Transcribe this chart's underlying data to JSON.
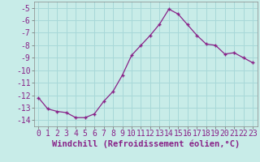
{
  "x": [
    0,
    1,
    2,
    3,
    4,
    5,
    6,
    7,
    8,
    9,
    10,
    11,
    12,
    13,
    14,
    15,
    16,
    17,
    18,
    19,
    20,
    21,
    22,
    23
  ],
  "y": [
    -12.2,
    -13.1,
    -13.3,
    -13.4,
    -13.8,
    -13.8,
    -13.5,
    -12.5,
    -11.7,
    -10.4,
    -8.8,
    -8.0,
    -7.2,
    -6.3,
    -5.1,
    -5.5,
    -6.35,
    -7.2,
    -7.9,
    -8.0,
    -8.7,
    -8.6,
    -9.0,
    -9.4
  ],
  "line_color": "#882288",
  "marker": "+",
  "marker_size": 3,
  "marker_linewidth": 1.0,
  "bg_color": "#c8ece8",
  "grid_color": "#a8d8d8",
  "xlabel": "Windchill (Refroidissement éolien,°C)",
  "xlabel_fontsize": 7.5,
  "tick_fontsize": 7,
  "line_width": 0.9,
  "ylim": [
    -14.5,
    -4.5
  ],
  "xlim": [
    -0.5,
    23.5
  ],
  "yticks": [
    -14,
    -13,
    -12,
    -11,
    -10,
    -9,
    -8,
    -7,
    -6,
    -5
  ],
  "xticks": [
    0,
    1,
    2,
    3,
    4,
    5,
    6,
    7,
    8,
    9,
    10,
    11,
    12,
    13,
    14,
    15,
    16,
    17,
    18,
    19,
    20,
    21,
    22,
    23
  ]
}
